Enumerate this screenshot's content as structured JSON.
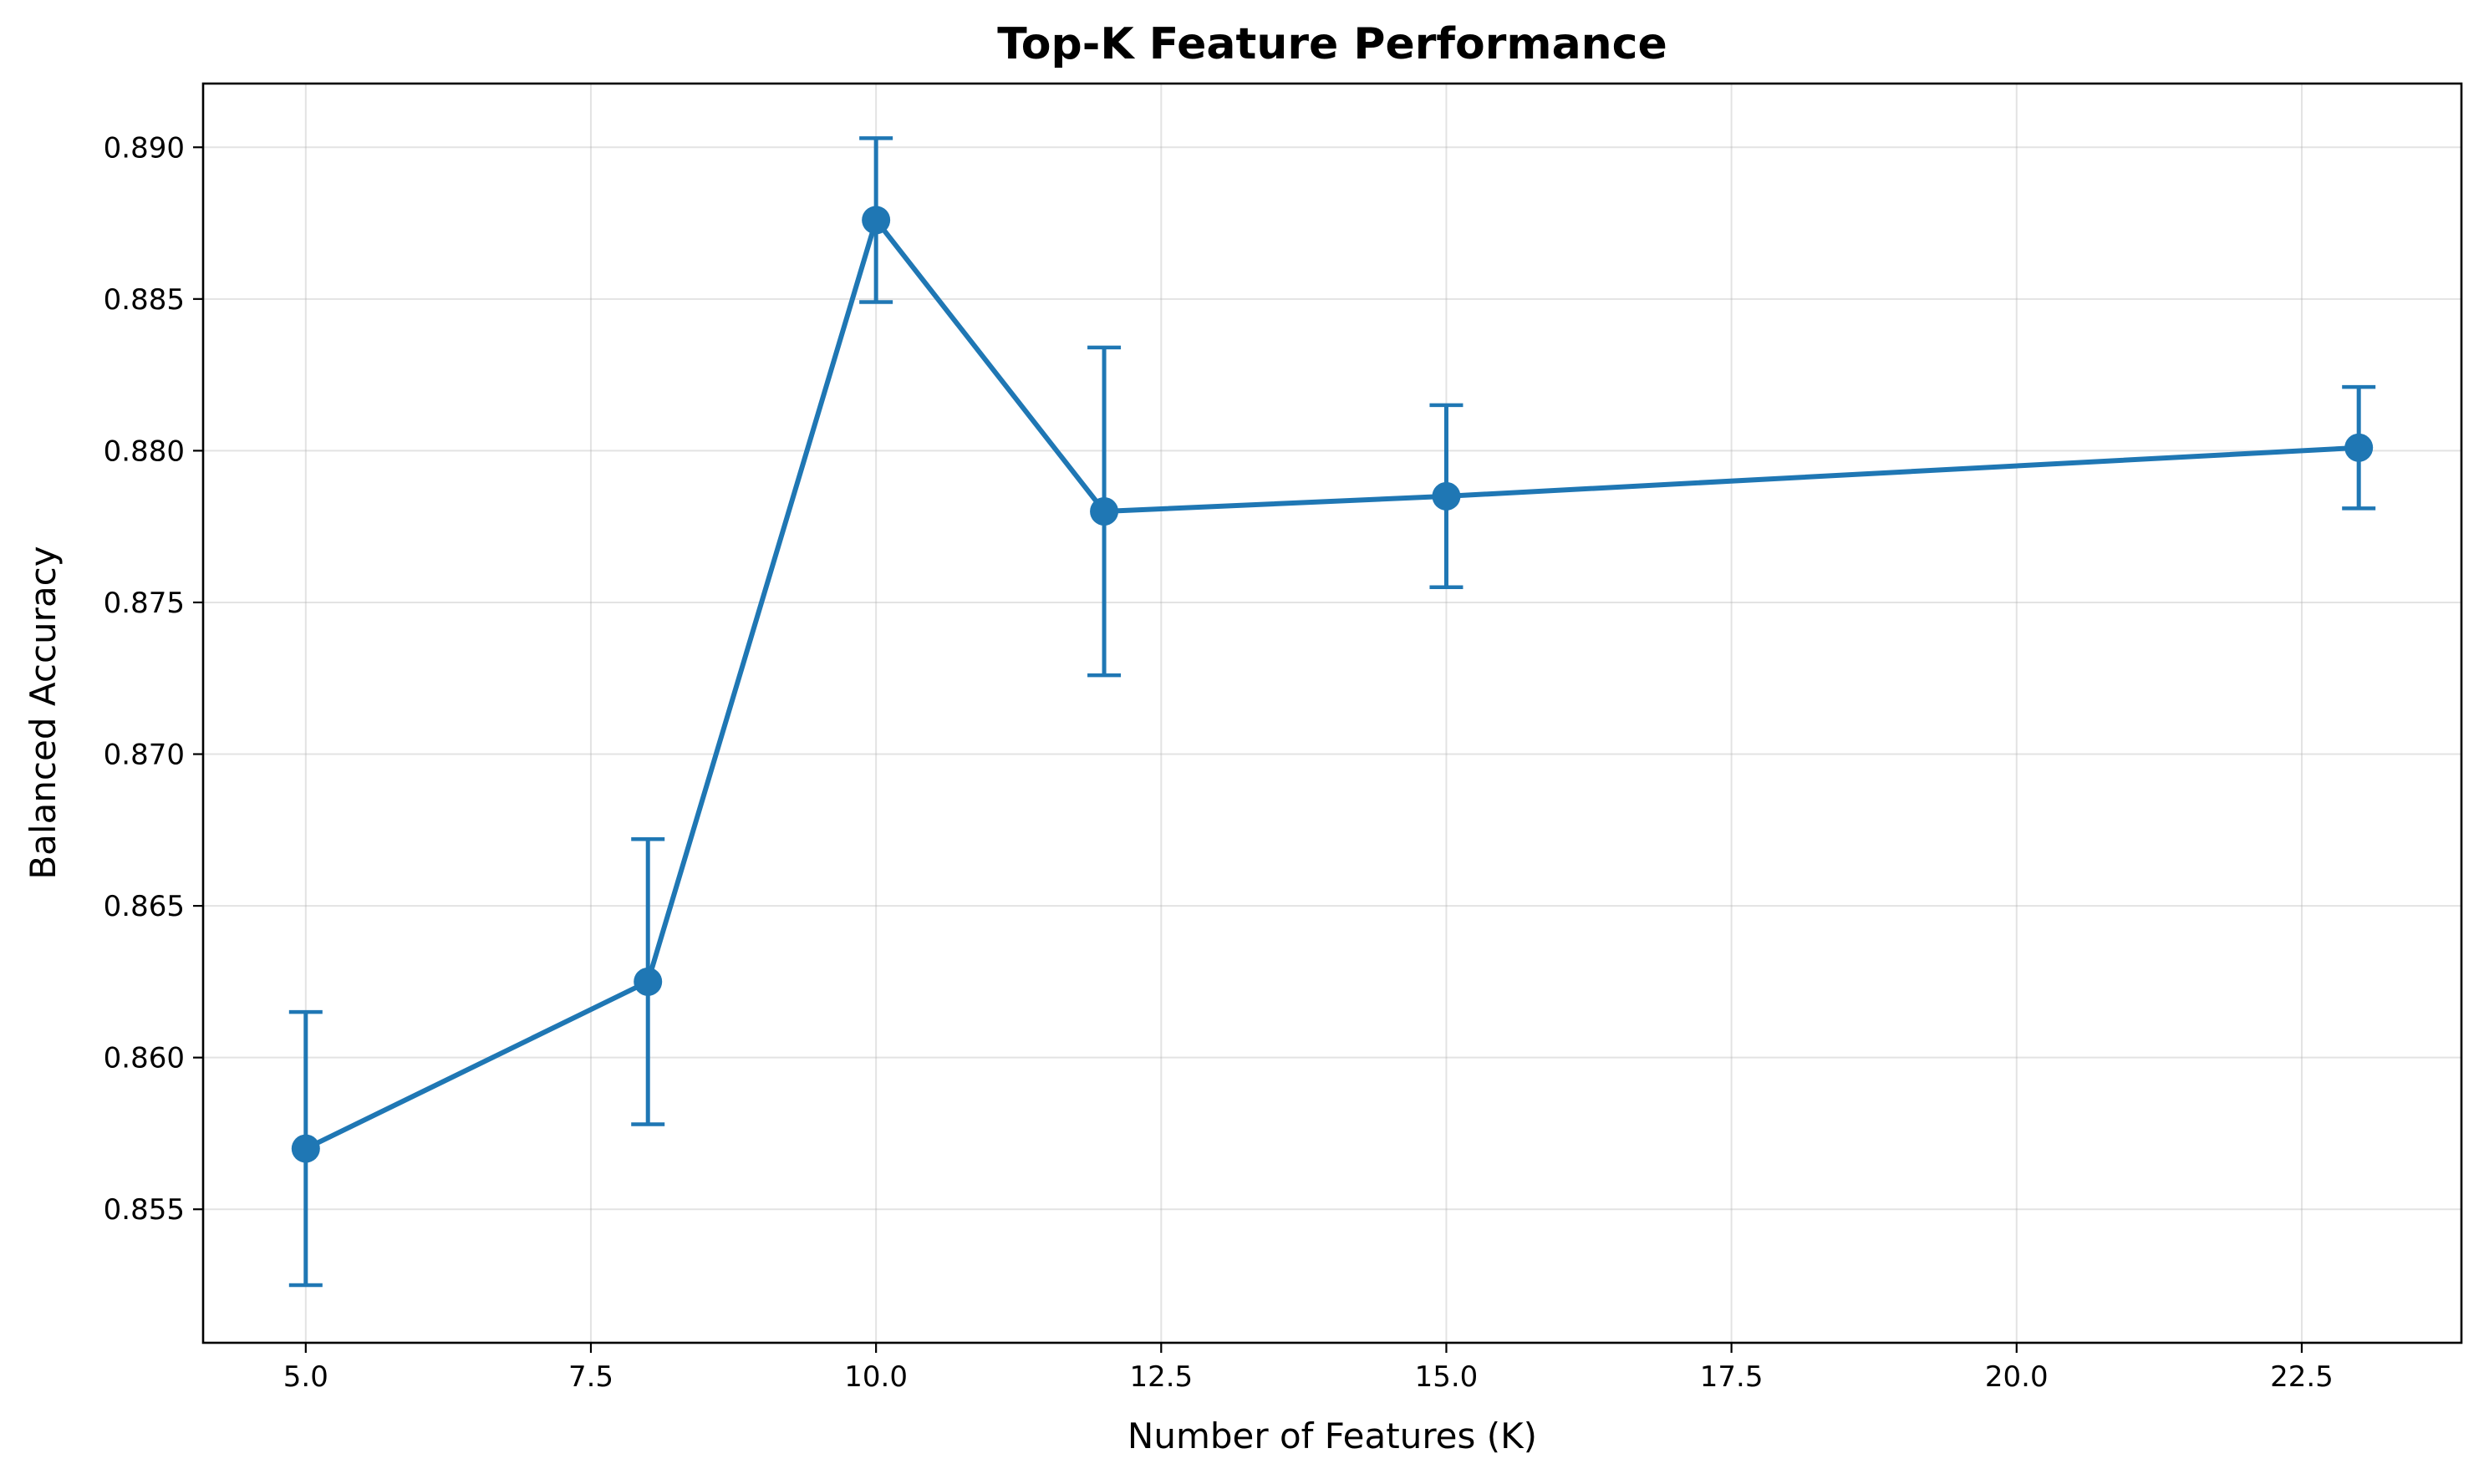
{
  "chart_data": {
    "type": "line",
    "title": "Top-K Feature Performance",
    "xlabel": "Number of Features (K)",
    "ylabel": "Balanced Accuracy",
    "xlim": [
      4.1,
      23.9
    ],
    "ylim": [
      0.8506,
      0.8921
    ],
    "grid": true,
    "legend": "none",
    "x_ticks": [
      5.0,
      7.5,
      10.0,
      12.5,
      15.0,
      17.5,
      20.0,
      22.5
    ],
    "x_tick_labels": [
      "5.0",
      "7.5",
      "10.0",
      "12.5",
      "15.0",
      "17.5",
      "20.0",
      "22.5"
    ],
    "y_ticks": [
      0.855,
      0.86,
      0.865,
      0.87,
      0.875,
      0.88,
      0.885,
      0.89
    ],
    "y_tick_labels": [
      "0.855",
      "0.860",
      "0.865",
      "0.870",
      "0.875",
      "0.880",
      "0.885",
      "0.890"
    ],
    "color": "#1f77b4",
    "series": [
      {
        "x": [
          5,
          8,
          10,
          12,
          15,
          23
        ],
        "y": [
          0.857,
          0.8625,
          0.8876,
          0.878,
          0.8785,
          0.8801
        ],
        "err": [
          0.0045,
          0.0047,
          0.0027,
          0.0054,
          0.003,
          0.002
        ]
      }
    ]
  }
}
